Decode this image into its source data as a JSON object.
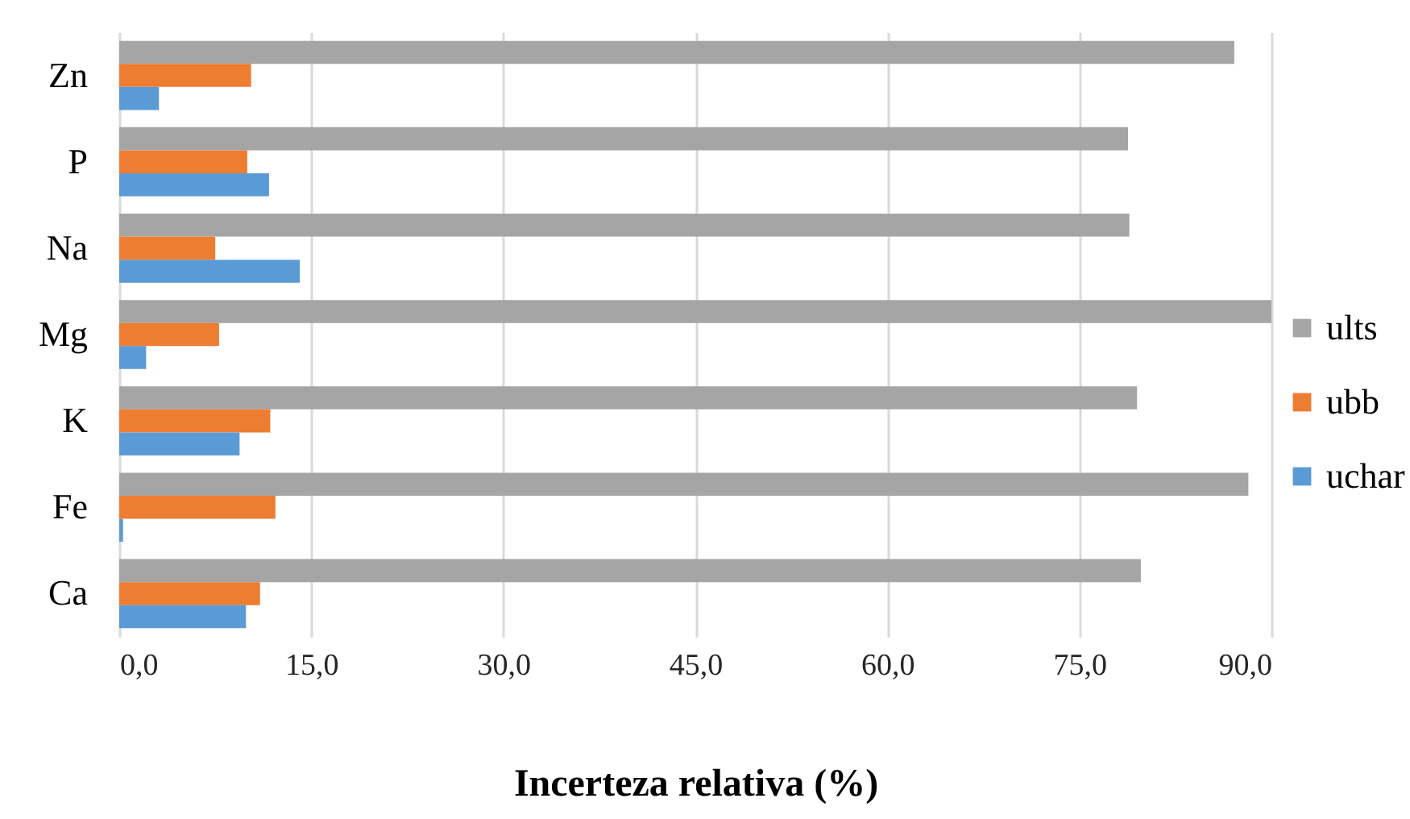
{
  "chart_data": {
    "type": "bar",
    "orientation": "horizontal",
    "xlabel": "Incerteza relativa (%)",
    "categories": [
      "Zn",
      "P",
      "Na",
      "Mg",
      "K",
      "Fe",
      "Ca"
    ],
    "series": [
      {
        "name": "ults",
        "color": "#a5a5a5",
        "values": [
          87.1,
          78.8,
          78.9,
          90.0,
          79.5,
          88.2,
          79.8
        ]
      },
      {
        "name": "ubb",
        "color": "#ed7d31",
        "values": [
          10.3,
          10.0,
          7.5,
          7.8,
          11.8,
          12.2,
          11.0
        ]
      },
      {
        "name": "uchar",
        "color": "#5b9bd5",
        "values": [
          3.1,
          11.7,
          14.1,
          2.1,
          9.4,
          0.3,
          9.9
        ]
      }
    ],
    "xlim": [
      0,
      90
    ],
    "xticks": [
      {
        "value": 0,
        "label": "0,0"
      },
      {
        "value": 15,
        "label": "15,0"
      },
      {
        "value": 30,
        "label": "30,0"
      },
      {
        "value": 45,
        "label": "45,0"
      },
      {
        "value": 60,
        "label": "60,0"
      },
      {
        "value": 75,
        "label": "75,0"
      },
      {
        "value": 90,
        "label": "90,0"
      }
    ],
    "grid": "x",
    "legend": "right"
  }
}
